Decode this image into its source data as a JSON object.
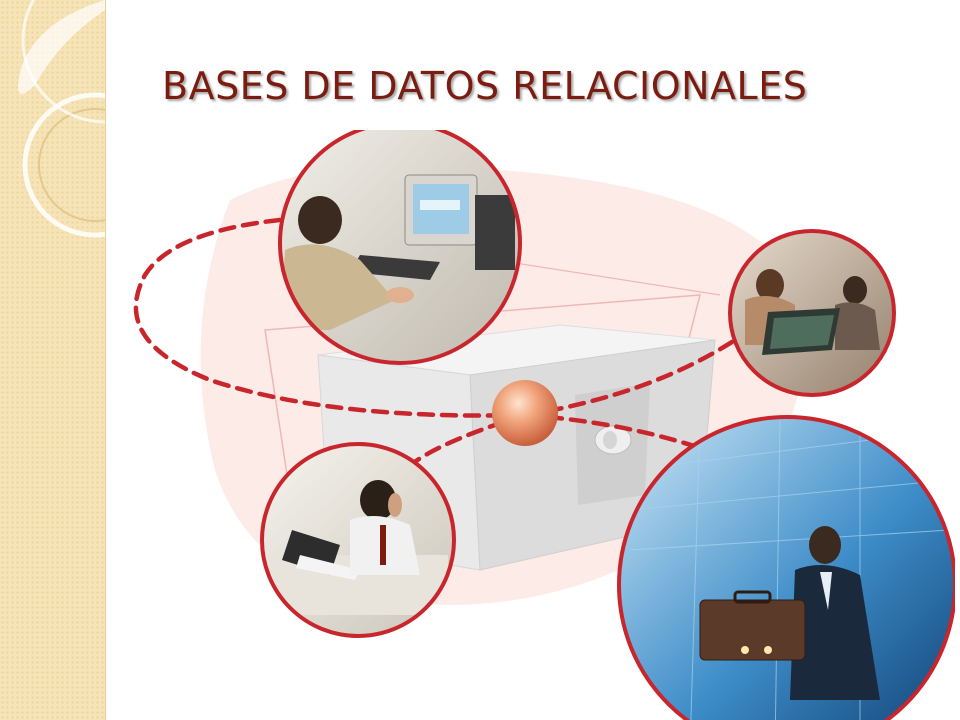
{
  "slide": {
    "title": "BASES DE DATOS RELACIONALES"
  },
  "theme": {
    "title_color": "#7a1d10",
    "band_color": "#f6e4b7",
    "accent_red": "#c8262c"
  },
  "illustration": {
    "photos": [
      {
        "name": "man-at-computer-photo",
        "icon": "person-computer-icon"
      },
      {
        "name": "meeting-laptop-photo",
        "icon": "team-laptop-icon"
      },
      {
        "name": "man-on-phone-photo",
        "icon": "phone-call-icon"
      },
      {
        "name": "businessman-briefcase-photo",
        "icon": "briefcase-icon"
      }
    ],
    "central_object": "database-box-icon",
    "central_node": "orange-sphere-icon"
  }
}
